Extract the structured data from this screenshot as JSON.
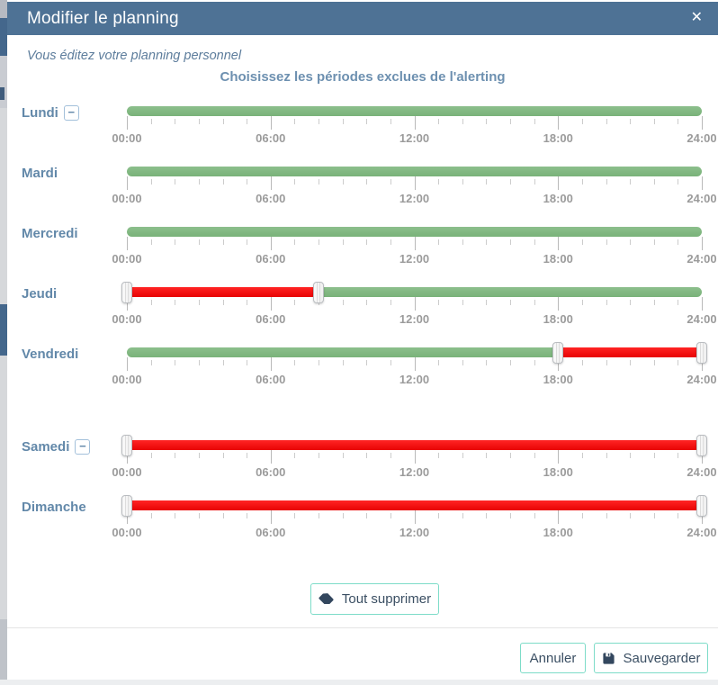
{
  "modal": {
    "title": "Modifier le planning",
    "close_glyph": "✕",
    "subtitle": "Vous éditez votre planning personnel",
    "section_title": "Choisissez les périodes exclues de l'alerting"
  },
  "icons": {
    "collapse_glyph": "−",
    "delete_all_icon": "eraser-icon",
    "save_icon": "save-disk-icon",
    "close_icon": "x-icon"
  },
  "colors": {
    "header_bg": "#4e7295",
    "accent_blue": "#6288a9",
    "section_title_blue": "#6d90b0",
    "green_segment": "#82b982",
    "red_segment": "#f20b0b",
    "button_border_teal": "#7ddcc8",
    "button_text": "#3b4f63",
    "tick_gray": "#b9b9b9",
    "tick_label_gray": "#9b9b9b"
  },
  "timeline": {
    "hours_total": 24,
    "minor_tick_every_hours": 1,
    "major_tick_every_hours": 6,
    "tick_labels": [
      {
        "hour": 0,
        "label": "00:00"
      },
      {
        "hour": 6,
        "label": "06:00"
      },
      {
        "hour": 12,
        "label": "12:00"
      },
      {
        "hour": 18,
        "label": "18:00"
      },
      {
        "hour": 24,
        "label": "24:00"
      }
    ]
  },
  "days": [
    {
      "label": "Lundi",
      "collapse_button": true,
      "extra_gap_before": false,
      "segments": [
        {
          "from": 0,
          "to": 24,
          "color": "green"
        }
      ],
      "handles": []
    },
    {
      "label": "Mardi",
      "collapse_button": false,
      "extra_gap_before": false,
      "segments": [
        {
          "from": 0,
          "to": 24,
          "color": "green"
        }
      ],
      "handles": []
    },
    {
      "label": "Mercredi",
      "collapse_button": false,
      "extra_gap_before": false,
      "segments": [
        {
          "from": 0,
          "to": 24,
          "color": "green"
        }
      ],
      "handles": []
    },
    {
      "label": "Jeudi",
      "collapse_button": false,
      "extra_gap_before": false,
      "segments": [
        {
          "from": 0,
          "to": 8,
          "color": "red"
        },
        {
          "from": 8,
          "to": 24,
          "color": "green"
        }
      ],
      "handles": [
        0,
        8
      ]
    },
    {
      "label": "Vendredi",
      "collapse_button": false,
      "extra_gap_before": false,
      "segments": [
        {
          "from": 0,
          "to": 18,
          "color": "green"
        },
        {
          "from": 18,
          "to": 24,
          "color": "red"
        }
      ],
      "handles": [
        18,
        24
      ]
    },
    {
      "label": "Samedi",
      "collapse_button": true,
      "extra_gap_before": true,
      "segments": [
        {
          "from": 0,
          "to": 24,
          "color": "red"
        }
      ],
      "handles": [
        0,
        24
      ]
    },
    {
      "label": "Dimanche",
      "collapse_button": false,
      "extra_gap_before": false,
      "segments": [
        {
          "from": 0,
          "to": 24,
          "color": "red"
        }
      ],
      "handles": [
        0,
        24
      ]
    }
  ],
  "actions": {
    "delete_all_label": "Tout supprimer",
    "cancel_label": "Annuler",
    "save_label": "Sauvegarder"
  }
}
